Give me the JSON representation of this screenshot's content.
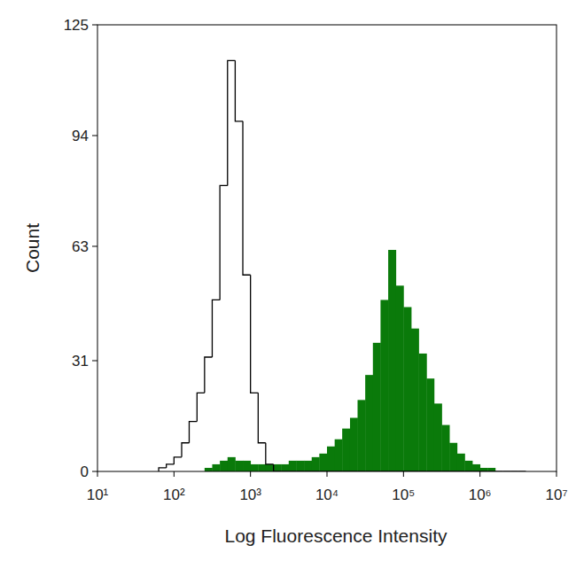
{
  "chart_data": {
    "type": "histogram",
    "log": "x",
    "x_label": "Log Fluorescence Intensity",
    "y_label": "Count",
    "xlim": [
      10,
      10000000
    ],
    "xticks": [
      {
        "value": 10,
        "label": "10¹"
      },
      {
        "value": 100,
        "label": "10²"
      },
      {
        "value": 1000,
        "label": "10³"
      },
      {
        "value": 10000,
        "label": "10⁴"
      },
      {
        "value": 100000,
        "label": "10⁵"
      },
      {
        "value": 1000000,
        "label": "10⁶"
      },
      {
        "value": 10000000,
        "label": "10⁷"
      }
    ],
    "ylim": [
      0,
      125
    ],
    "yticks": [
      0,
      31,
      63,
      94,
      125
    ],
    "grid": false,
    "bins": [
      63.1,
      79.4,
      100,
      126,
      158,
      200,
      251,
      316,
      398,
      501,
      631,
      794,
      1000,
      1260,
      1580,
      2000,
      2510,
      3160,
      3980,
      5010,
      6310,
      7940,
      10000,
      12600,
      15800,
      20000,
      25100,
      31600,
      39800,
      50100,
      63100,
      79400,
      100000,
      126000,
      158000,
      200000,
      251000,
      316000,
      398000,
      501000,
      631000,
      794000,
      1000000,
      1260000,
      1580000,
      2000000,
      2510000,
      3160000,
      3980000
    ],
    "series": [
      {
        "type": "area",
        "color": "#0a7a0a",
        "values": [
          0,
          0,
          0,
          0,
          0,
          0,
          1,
          2,
          3,
          4,
          3,
          3,
          2,
          2,
          2,
          2,
          2,
          3,
          3,
          3,
          4,
          5,
          7,
          9,
          12,
          15,
          20,
          27,
          36,
          48,
          62,
          52,
          46,
          40,
          33,
          26,
          19,
          13,
          8,
          5,
          3,
          2,
          1,
          1,
          0,
          0,
          0,
          0
        ]
      },
      {
        "type": "line",
        "color": "#000000",
        "values": [
          1,
          2,
          4,
          8,
          14,
          22,
          32,
          48,
          80,
          115,
          98,
          55,
          22,
          8,
          2,
          0,
          0,
          0,
          0,
          0,
          0,
          0,
          0,
          0,
          0,
          0,
          0,
          0,
          0,
          0,
          0,
          0,
          0,
          0,
          0,
          0,
          0,
          0,
          0,
          0,
          0,
          0,
          0,
          0,
          0,
          0,
          0,
          0
        ]
      }
    ]
  }
}
